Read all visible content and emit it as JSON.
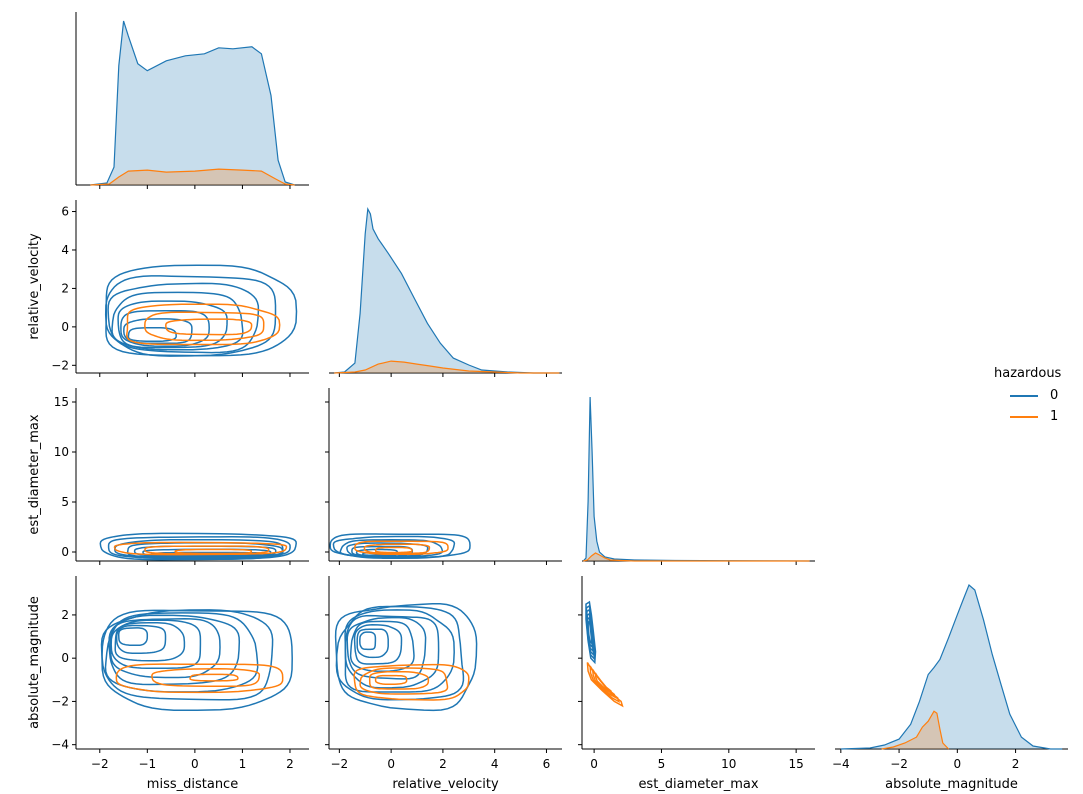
{
  "chart_data": {
    "type": "pairplot-kde",
    "variables": [
      "miss_distance",
      "relative_velocity",
      "est_diameter_max",
      "absolute_magnitude"
    ],
    "axis_ranges": {
      "miss_distance": [
        -2.5,
        2.4
      ],
      "relative_velocity": [
        -2.4,
        6.6
      ],
      "est_diameter_max": [
        -0.9,
        16.4
      ],
      "absolute_magnitude": [
        -4.2,
        3.8
      ]
    },
    "ticks": {
      "miss_distance": [
        -2,
        -1,
        0,
        1,
        2
      ],
      "relative_velocity": [
        -2,
        0,
        2,
        4,
        6
      ],
      "est_diameter_max": [
        0,
        5,
        10,
        15
      ],
      "absolute_magnitude": [
        -4,
        -2,
        0,
        2
      ]
    },
    "hue": {
      "title": "hazardous",
      "levels": [
        {
          "label": "0",
          "color": "#1f77b4"
        },
        {
          "label": "1",
          "color": "#ff7f0e"
        }
      ]
    },
    "diagonal_kde": {
      "miss_distance": {
        "0": [
          [
            -2.2,
            0
          ],
          [
            -1.85,
            2
          ],
          [
            -1.7,
            18
          ],
          [
            -1.6,
            120
          ],
          [
            -1.5,
            165
          ],
          [
            -1.4,
            150
          ],
          [
            -1.2,
            122
          ],
          [
            -1.0,
            115
          ],
          [
            -0.6,
            125
          ],
          [
            -0.2,
            130
          ],
          [
            0.2,
            132
          ],
          [
            0.5,
            138
          ],
          [
            0.8,
            137
          ],
          [
            1.2,
            139
          ],
          [
            1.4,
            132
          ],
          [
            1.6,
            90
          ],
          [
            1.75,
            25
          ],
          [
            1.9,
            3
          ],
          [
            2.1,
            0
          ]
        ],
        "1": [
          [
            -2.2,
            0
          ],
          [
            -1.8,
            1
          ],
          [
            -1.6,
            8
          ],
          [
            -1.4,
            14
          ],
          [
            -1.0,
            15
          ],
          [
            -0.6,
            13
          ],
          [
            0,
            14
          ],
          [
            0.5,
            16
          ],
          [
            1.0,
            15
          ],
          [
            1.4,
            14
          ],
          [
            1.7,
            6
          ],
          [
            1.9,
            1
          ],
          [
            2.1,
            0
          ]
        ]
      },
      "relative_velocity": {
        "0": [
          [
            -2.2,
            0
          ],
          [
            -1.8,
            1
          ],
          [
            -1.4,
            10
          ],
          [
            -1.2,
            60
          ],
          [
            -1.0,
            140
          ],
          [
            -0.9,
            165
          ],
          [
            -0.8,
            160
          ],
          [
            -0.7,
            145
          ],
          [
            -0.5,
            135
          ],
          [
            -0.1,
            120
          ],
          [
            0.4,
            100
          ],
          [
            0.9,
            75
          ],
          [
            1.4,
            50
          ],
          [
            1.9,
            30
          ],
          [
            2.4,
            15
          ],
          [
            3.0,
            8
          ],
          [
            3.5,
            3
          ],
          [
            4.5,
            1
          ],
          [
            5.5,
            0
          ],
          [
            6.5,
            0
          ]
        ],
        "1": [
          [
            -2.2,
            0
          ],
          [
            -1.4,
            1
          ],
          [
            -1,
            3
          ],
          [
            -0.5,
            9
          ],
          [
            0,
            12
          ],
          [
            0.5,
            11
          ],
          [
            1,
            9
          ],
          [
            1.5,
            7
          ],
          [
            2,
            5
          ],
          [
            3,
            2
          ],
          [
            4,
            1
          ],
          [
            5,
            0
          ],
          [
            6,
            0
          ],
          [
            6.5,
            0
          ]
        ]
      },
      "est_diameter_max": {
        "0": [
          [
            -0.8,
            0
          ],
          [
            -0.6,
            3
          ],
          [
            -0.45,
            60
          ],
          [
            -0.3,
            165
          ],
          [
            -0.15,
            110
          ],
          [
            0,
            45
          ],
          [
            0.2,
            20
          ],
          [
            0.4,
            9
          ],
          [
            0.8,
            4
          ],
          [
            1.5,
            2
          ],
          [
            3,
            1
          ],
          [
            6,
            0.5
          ],
          [
            10,
            0.3
          ],
          [
            16,
            0
          ]
        ],
        "1": [
          [
            -0.8,
            0
          ],
          [
            -0.5,
            1
          ],
          [
            -0.2,
            5
          ],
          [
            0.1,
            8
          ],
          [
            0.4,
            6
          ],
          [
            0.8,
            3
          ],
          [
            1.2,
            1
          ],
          [
            2,
            0.5
          ],
          [
            3,
            0
          ],
          [
            16,
            0
          ]
        ]
      },
      "absolute_magnitude": {
        "0": [
          [
            -4,
            0
          ],
          [
            -3,
            1
          ],
          [
            -2.5,
            4
          ],
          [
            -2,
            10
          ],
          [
            -1.6,
            25
          ],
          [
            -1.3,
            48
          ],
          [
            -1.0,
            75
          ],
          [
            -0.8,
            82
          ],
          [
            -0.6,
            90
          ],
          [
            -0.3,
            112
          ],
          [
            0,
            135
          ],
          [
            0.2,
            150
          ],
          [
            0.4,
            165
          ],
          [
            0.6,
            160
          ],
          [
            0.9,
            130
          ],
          [
            1.2,
            95
          ],
          [
            1.5,
            65
          ],
          [
            1.8,
            35
          ],
          [
            2.2,
            12
          ],
          [
            2.6,
            3
          ],
          [
            3.2,
            0
          ],
          [
            3.6,
            0
          ]
        ],
        "1": [
          [
            -2.6,
            0
          ],
          [
            -2.2,
            2
          ],
          [
            -1.8,
            6
          ],
          [
            -1.4,
            12
          ],
          [
            -1.2,
            22
          ],
          [
            -1.0,
            28
          ],
          [
            -0.8,
            38
          ],
          [
            -0.7,
            36
          ],
          [
            -0.6,
            20
          ],
          [
            -0.5,
            6
          ],
          [
            -0.3,
            0
          ]
        ]
      }
    }
  }
}
